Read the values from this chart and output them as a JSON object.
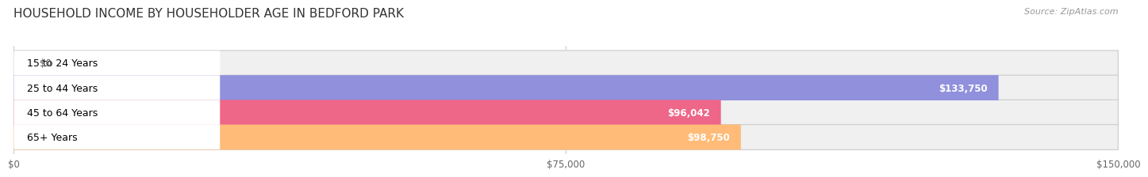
{
  "title": "HOUSEHOLD INCOME BY HOUSEHOLDER AGE IN BEDFORD PARK",
  "source": "Source: ZipAtlas.com",
  "categories": [
    "15 to 24 Years",
    "25 to 44 Years",
    "45 to 64 Years",
    "65+ Years"
  ],
  "values": [
    0,
    133750,
    96042,
    98750
  ],
  "bar_colors": [
    "#6dcfcf",
    "#9090dd",
    "#ee6688",
    "#ffbb77"
  ],
  "bar_bg_color": "#f0f0f0",
  "value_labels": [
    "$0",
    "$133,750",
    "$96,042",
    "$98,750"
  ],
  "xlim": [
    0,
    150000
  ],
  "xticks": [
    0,
    75000,
    150000
  ],
  "xtick_labels": [
    "$0",
    "$75,000",
    "$150,000"
  ],
  "title_fontsize": 11,
  "source_fontsize": 8,
  "label_fontsize": 9,
  "value_fontsize": 8.5,
  "bar_height": 0.58,
  "background_color": "#ffffff"
}
